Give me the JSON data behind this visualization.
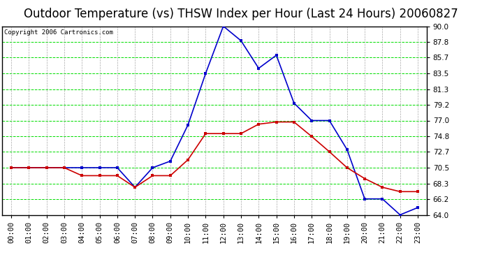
{
  "title": "Outdoor Temperature (vs) THSW Index per Hour (Last 24 Hours) 20060827",
  "copyright": "Copyright 2006 Cartronics.com",
  "hours": [
    "00:00",
    "01:00",
    "02:00",
    "03:00",
    "04:00",
    "05:00",
    "06:00",
    "07:00",
    "08:00",
    "09:00",
    "10:00",
    "11:00",
    "12:00",
    "13:00",
    "14:00",
    "15:00",
    "16:00",
    "17:00",
    "18:00",
    "19:00",
    "20:00",
    "21:00",
    "22:00",
    "23:00"
  ],
  "temp": [
    70.5,
    70.5,
    70.5,
    70.5,
    69.4,
    69.4,
    69.4,
    67.8,
    69.4,
    69.4,
    71.6,
    75.2,
    75.2,
    75.2,
    76.5,
    76.8,
    76.8,
    74.8,
    72.7,
    70.5,
    69.0,
    67.8,
    67.2,
    67.2
  ],
  "thsw": [
    70.5,
    70.5,
    70.5,
    70.5,
    70.5,
    70.5,
    70.5,
    67.8,
    70.5,
    71.4,
    76.4,
    83.5,
    90.0,
    88.0,
    84.2,
    86.0,
    79.4,
    77.0,
    77.0,
    73.0,
    66.2,
    66.2,
    64.0,
    65.0
  ],
  "ylim": [
    64.0,
    90.0
  ],
  "yticks": [
    64.0,
    66.2,
    68.3,
    70.5,
    72.7,
    74.8,
    77.0,
    79.2,
    81.3,
    83.5,
    85.7,
    87.8,
    90.0
  ],
  "bg_color": "#ffffff",
  "plot_bg_color": "#ffffff",
  "grid_h_color": "#00dd00",
  "grid_v_color": "#aaaaaa",
  "temp_color": "#cc0000",
  "thsw_color": "#0000cc",
  "marker_size": 3,
  "line_width": 1.2,
  "title_fontsize": 12,
  "tick_fontsize": 7.5,
  "copyright_fontsize": 6.5
}
